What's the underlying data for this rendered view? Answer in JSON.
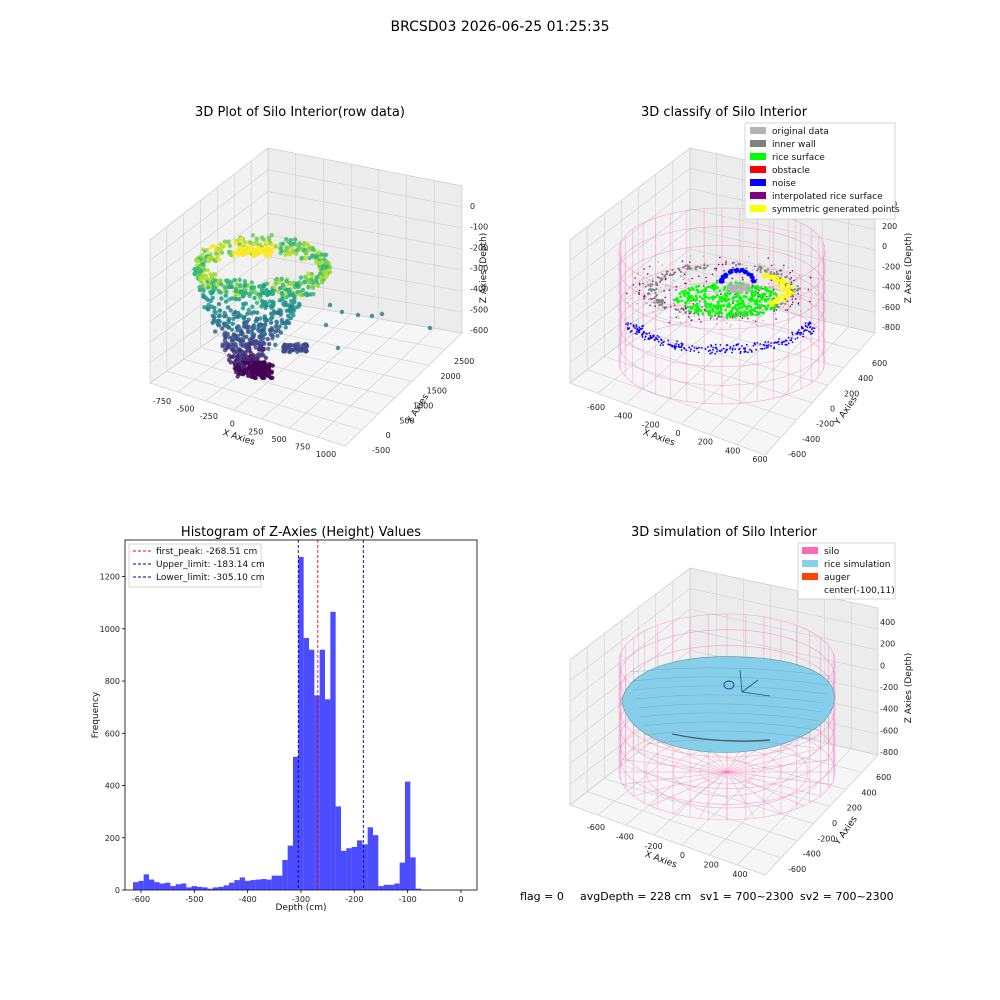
{
  "suptitle": "BRCSD03 2026-06-25 01:25:35",
  "footer": {
    "flag": "flag = 0",
    "avg": "avgDepth = 228 cm",
    "sv1": "sv1 = 700~2300",
    "sv2": "sv2 = 700~2300"
  },
  "colors": {
    "hist": "#0000ff",
    "first_peak": "#ff0000",
    "limit": "#00008b",
    "silo": "#ff69b4",
    "rice_sim": "#87ceeb",
    "auger": "#ff4500",
    "original": "#b3b3b3",
    "inner_wall": "#808080",
    "rice_surface": "#00ff00",
    "obstacle": "#ff0000",
    "noise": "#0000ff",
    "interp": "#800080",
    "sym": "#ffff00"
  },
  "chart_data": [
    {
      "type": "scatter",
      "projection": "3d",
      "title": "3D Plot of Silo Interior(row data)",
      "xlabel": "X Axies",
      "ylabel": "Y Axies",
      "zlabel": "Z Axies (Depth)",
      "x_ticks": [
        "-750",
        "-500",
        "-250",
        "0",
        "250",
        "500",
        "750",
        "1000"
      ],
      "y_ticks": [
        "-500",
        "0",
        "500",
        "1000",
        "1500",
        "2000",
        "2500"
      ],
      "z_ticks": [
        "0",
        "-100",
        "-200",
        "-300",
        "-400",
        "-500",
        "-600"
      ],
      "colormap": "viridis"
    },
    {
      "type": "scatter",
      "projection": "3d",
      "title": "3D classify of Silo Interior",
      "xlabel": "X Axies",
      "ylabel": "Y Axies",
      "zlabel": "Z Axies (Depth)",
      "x_ticks": [
        "-600",
        "-400",
        "-200",
        "0",
        "200",
        "400",
        "600"
      ],
      "y_ticks": [
        "-600",
        "-400",
        "-200",
        "0",
        "200",
        "400",
        "600"
      ],
      "z_ticks": [
        "200",
        "0",
        "-200",
        "-400",
        "-600",
        "-800"
      ],
      "z_top_tick": "400",
      "legend": [
        "original data",
        "inner wall",
        "rice surface",
        "obstacle",
        "noise",
        "interpolated rice surface",
        "symmetric generated points"
      ],
      "legend_position": "upper right"
    },
    {
      "type": "bar",
      "title": "Histogram of Z-Axies (Height) Values",
      "xlabel": "Depth (cm)",
      "ylabel": "Frequency",
      "bin_width": 10,
      "bin_starts": [
        -615,
        -605,
        -595,
        -585,
        -575,
        -565,
        -555,
        -545,
        -535,
        -525,
        -515,
        -505,
        -495,
        -485,
        -475,
        -465,
        -455,
        -445,
        -435,
        -425,
        -415,
        -405,
        -395,
        -385,
        -375,
        -365,
        -355,
        -345,
        -335,
        -325,
        -315,
        -305,
        -295,
        -285,
        -275,
        -265,
        -255,
        -245,
        -235,
        -225,
        -215,
        -205,
        -195,
        -185,
        -175,
        -165,
        -155,
        -145,
        -135,
        -125,
        -115,
        -105,
        -95,
        -85,
        -75,
        -65,
        -55,
        -45,
        -35,
        -25,
        -15
      ],
      "values": [
        30,
        35,
        60,
        40,
        30,
        25,
        28,
        15,
        22,
        25,
        10,
        15,
        12,
        10,
        5,
        10,
        12,
        18,
        28,
        38,
        48,
        35,
        38,
        40,
        42,
        40,
        55,
        55,
        115,
        170,
        510,
        1275,
        965,
        920,
        745,
        920,
        730,
        1065,
        320,
        150,
        160,
        165,
        190,
        175,
        240,
        210,
        15,
        20,
        20,
        25,
        105,
        415,
        125,
        5,
        0,
        0,
        0,
        0,
        0,
        0,
        0
      ],
      "xlim": [
        -630,
        30
      ],
      "ylim": [
        0,
        1340
      ],
      "x_ticks": [
        -600,
        -500,
        -400,
        -300,
        -200,
        -100,
        0
      ],
      "y_ticks": [
        0,
        200,
        400,
        600,
        800,
        1000,
        1200
      ],
      "vlines": [
        {
          "label": "first_peak: -268.51 cm",
          "x": -268.51,
          "color": "red"
        },
        {
          "label": "Upper_limit: -183.14 cm",
          "x": -183.14,
          "color": "limit"
        },
        {
          "label": "Lower_limit: -305.10 cm",
          "x": -305.1,
          "color": "limit"
        }
      ],
      "legend_position": "upper left"
    },
    {
      "type": "scatter",
      "projection": "3d",
      "title": "3D simulation of Silo Interior",
      "xlabel": "X Axies",
      "ylabel": "Y Axies",
      "zlabel": "Z Axies (Depth)",
      "x_ticks": [
        "-600",
        "-400",
        "-200",
        "0",
        "200",
        "400"
      ],
      "y_ticks": [
        "-600",
        "-400",
        "-200",
        "0",
        "200",
        "400",
        "600"
      ],
      "z_ticks": [
        "400",
        "200",
        "0",
        "-200",
        "-400",
        "-600",
        "-800"
      ],
      "legend": [
        "silo",
        "rice simulation",
        "auger",
        "center(-100,11)"
      ],
      "legend_position": "upper right"
    }
  ]
}
